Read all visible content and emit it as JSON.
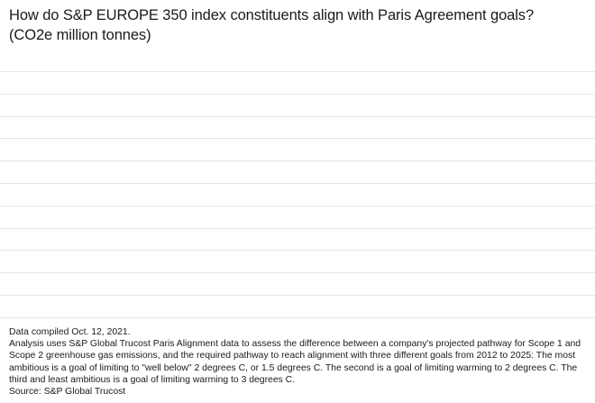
{
  "chart_data": {
    "type": "line",
    "title": "How do S&P EUROPE 350 index constituents align with Paris Agreement goals?",
    "subtitle": "(CO2e million tonnes)",
    "grid": true,
    "gridline_count": 12,
    "grid_color": "#e6e6e6",
    "series": [],
    "xlabel": "",
    "ylabel": ""
  },
  "footer": {
    "compiled": "Data compiled Oct. 12, 2021.",
    "analysis": "Analysis uses S&P Global Trucost Paris Alignment data to assess the difference between a company's projected pathway for Scope 1 and Scope 2 greenhouse gas emissions, and the required pathway to reach alignment with three different goals from 2012 to 2025: The most ambitious is a goal of limiting to \"well below\" 2 degrees C, or 1.5 degrees C. The second is a goal of limiting warming to 2 degrees C. The third and least ambitious is a goal of limiting warming to 3 degrees C.",
    "source": "Source: S&P Global Trucost"
  }
}
